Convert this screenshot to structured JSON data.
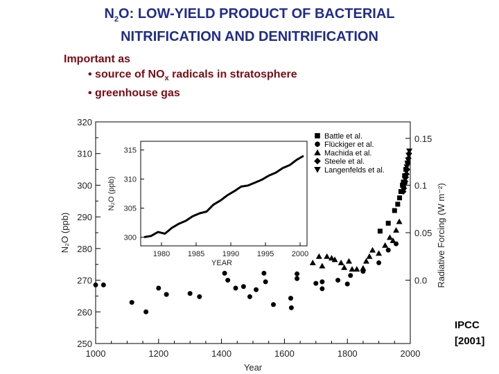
{
  "slide": {
    "title_line1_a": "N",
    "title_line1_sub": "2",
    "title_line1_b": "O: LOW-YIELD PRODUCT OF BACTERIAL",
    "title_line2": "NITRIFICATION AND DENITRIFICATION",
    "intro": "Important as",
    "bullet1_a": "• source of NO",
    "bullet1_sub": "x",
    "bullet1_b": " radicals in stratosphere",
    "bullet2": "• greenhouse gas",
    "credit_line1": "IPCC",
    "credit_line2": "[2001]"
  },
  "chart_data": [
    {
      "type": "scatter",
      "xlabel": "Year",
      "ylabel": "N₂O (ppb)",
      "y2label": "Radiative Forcing (W m⁻²)",
      "xlim": [
        1000,
        2000
      ],
      "ylim": [
        250,
        320
      ],
      "xticks": [
        1000,
        1200,
        1400,
        1600,
        1800,
        2000
      ],
      "yticks": [
        250,
        260,
        270,
        280,
        290,
        300,
        310,
        320
      ],
      "y2ticks": [
        {
          "label": "0.0",
          "at_ppb": 270
        },
        {
          "label": "0.05",
          "at_ppb": 285
        },
        {
          "label": "0.1",
          "at_ppb": 300
        },
        {
          "label": "0.15",
          "at_ppb": 314.8
        }
      ],
      "legend_position": "top-right",
      "series": [
        {
          "name": "Battle et al.",
          "marker": "square",
          "points": [
            [
              1904,
              285.5
            ],
            [
              1930,
              288
            ],
            [
              1950,
              292
            ],
            [
              1960,
              294
            ],
            [
              1966,
              296
            ],
            [
              1970,
              298
            ],
            [
              1975,
              300
            ],
            [
              1978,
              301
            ],
            [
              1982,
              303
            ],
            [
              1986,
              305
            ]
          ]
        },
        {
          "name": "Flückiger et al.",
          "marker": "circle",
          "points": [
            [
              1000,
              268.5
            ],
            [
              1025,
              268.5
            ],
            [
              1115,
              263
            ],
            [
              1160,
              260
            ],
            [
              1200,
              267.5
            ],
            [
              1225,
              265.5
            ],
            [
              1300,
              265.8
            ],
            [
              1330,
              264.8
            ],
            [
              1410,
              272.2
            ],
            [
              1420,
              270
            ],
            [
              1445,
              267.5
            ],
            [
              1470,
              268
            ],
            [
              1490,
              264.8
            ],
            [
              1510,
              267
            ],
            [
              1535,
              272.2
            ],
            [
              1540,
              269.5
            ],
            [
              1565,
              262.3
            ],
            [
              1620,
              264.3
            ],
            [
              1622,
              261.3
            ],
            [
              1640,
              272
            ],
            [
              1640,
              270.5
            ],
            [
              1700,
              269
            ],
            [
              1720,
              269.5
            ],
            [
              1720,
              267.3
            ],
            [
              1770,
              270
            ],
            [
              1800,
              268.8
            ],
            [
              1810,
              271.5
            ],
            [
              1850,
              272.8
            ],
            [
              1900,
              275.5
            ],
            [
              1930,
              279.5
            ],
            [
              1955,
              281.5
            ]
          ]
        },
        {
          "name": "Machida et al.",
          "marker": "triangle",
          "points": [
            [
              1690,
              275.5
            ],
            [
              1710,
              277.5
            ],
            [
              1720,
              274.5
            ],
            [
              1735,
              277.5
            ],
            [
              1750,
              277
            ],
            [
              1760,
              276.5
            ],
            [
              1780,
              275.5
            ],
            [
              1790,
              274
            ],
            [
              1805,
              276
            ],
            [
              1815,
              273.5
            ],
            [
              1830,
              273.5
            ],
            [
              1850,
              273.8
            ],
            [
              1860,
              276
            ],
            [
              1870,
              277.5
            ],
            [
              1880,
              279.5
            ],
            [
              1900,
              278.5
            ],
            [
              1920,
              281
            ],
            [
              1935,
              283.5
            ],
            [
              1945,
              282.5
            ],
            [
              1955,
              285.8
            ],
            [
              1965,
              288.5
            ]
          ]
        },
        {
          "name": "Steele et al.",
          "marker": "diamond",
          "points": [
            [
              1978,
              298
            ],
            [
              1980,
              299
            ],
            [
              1982,
              300.5
            ],
            [
              1984,
              301.2
            ],
            [
              1986,
              302.5
            ],
            [
              1988,
              303.5
            ],
            [
              1990,
              305
            ],
            [
              1992,
              307
            ],
            [
              1994,
              308.5
            ],
            [
              1996,
              310
            ]
          ]
        },
        {
          "name": "Langenfelds et al.",
          "marker": "triangle-down",
          "points": [
            [
              1978,
              299
            ],
            [
              1981,
              300.8
            ],
            [
              1983,
              302
            ],
            [
              1985,
              303
            ],
            [
              1987,
              304.5
            ],
            [
              1989,
              305.8
            ],
            [
              1991,
              307
            ],
            [
              1993,
              308
            ],
            [
              1995,
              309.5
            ],
            [
              1997,
              310.8
            ]
          ]
        }
      ]
    },
    {
      "type": "line",
      "xlabel": "YEAR",
      "ylabel": "N₂O (ppb)",
      "xlim": [
        1977,
        2001
      ],
      "ylim": [
        298.5,
        316.5
      ],
      "xticks": [
        1980,
        1985,
        1990,
        1995,
        2000
      ],
      "yticks": [
        300,
        305,
        310,
        315
      ],
      "x": [
        1977.5,
        1978.5,
        1979.5,
        1980.5,
        1981.5,
        1982.5,
        1983.5,
        1984.5,
        1985.5,
        1986.5,
        1987.5,
        1988.5,
        1989.5,
        1990.5,
        1991.5,
        1992.5,
        1993.5,
        1994.5,
        1995.5,
        1996.5,
        1997.5,
        1998.5,
        1999.5,
        2000.5
      ],
      "values": [
        300,
        300.2,
        300.9,
        300.6,
        301.6,
        302.3,
        302.8,
        303.6,
        304.1,
        304.4,
        305.6,
        306.3,
        307.2,
        307.9,
        308.7,
        308.9,
        309.4,
        309.9,
        310.6,
        311.1,
        311.9,
        312.4,
        313.3,
        314
      ]
    }
  ]
}
